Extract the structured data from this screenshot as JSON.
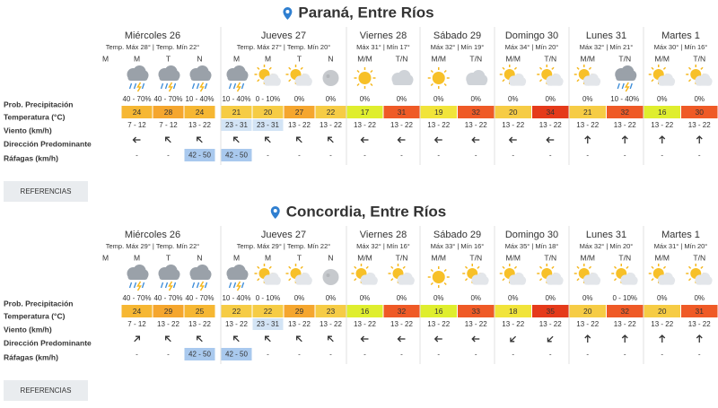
{
  "locations": [
    {
      "title": "Paraná, Entre Ríos",
      "row_labels": [
        "Prob. Precipitación",
        "Temperatura (°C)",
        "Viento (km/h)",
        "Dirección Predominante",
        "Ráfagas (km/h)"
      ],
      "days": [
        {
          "name": "Miércoles 26",
          "summary": "Temp. Máx 28° | Temp. Mín 22°",
          "periods": [
            {
              "label": "M"
            },
            {
              "label": "M",
              "prob": "40 - 70%",
              "temp": 24,
              "wind": "7 - 12",
              "gust": "-"
            },
            {
              "label": "T",
              "prob": "40 - 70%",
              "temp": 28,
              "wind": "7 - 12",
              "gust": "-"
            },
            {
              "label": "N",
              "prob": "10 - 40%",
              "temp": 24,
              "wind": "13 - 22",
              "gust": "42 - 50"
            }
          ]
        },
        {
          "name": "Jueves 27",
          "summary": "Temp. Máx 27° | Temp. Mín 20°",
          "periods": [
            {
              "label": "M",
              "prob": "10 - 40%",
              "temp": 21,
              "wind": "23 - 31",
              "gust": "42 - 50"
            },
            {
              "label": "M",
              "prob": "0 - 10%",
              "temp": 20,
              "wind": "23 - 31",
              "gust": "-"
            },
            {
              "label": "T",
              "prob": "0%",
              "temp": 27,
              "wind": "13 - 22",
              "gust": "-"
            },
            {
              "label": "N",
              "prob": "0%",
              "temp": 22,
              "wind": "13 - 22",
              "gust": "-"
            }
          ]
        },
        {
          "name": "Viernes 28",
          "summary": "Máx 31° | Mín 17°",
          "periods": [
            {
              "label": "M/M",
              "prob": "0%",
              "temp": 17,
              "wind": "13 - 22",
              "gust": "-"
            },
            {
              "label": "T/N",
              "prob": "0%",
              "temp": 31,
              "wind": "13 - 22",
              "gust": "-"
            }
          ]
        },
        {
          "name": "Sábado 29",
          "summary": "Máx 32° | Mín 19°",
          "periods": [
            {
              "label": "M/M",
              "prob": "0%",
              "temp": 19,
              "wind": "13 - 22",
              "gust": "-"
            },
            {
              "label": "T/N",
              "prob": "0%",
              "temp": 32,
              "wind": "13 - 22",
              "gust": "-"
            }
          ]
        },
        {
          "name": "Domingo 30",
          "summary": "Máx 34° | Mín 20°",
          "periods": [
            {
              "label": "M/M",
              "prob": "0%",
              "temp": 20,
              "wind": "13 - 22",
              "gust": "-"
            },
            {
              "label": "T/N",
              "prob": "0%",
              "temp": 34,
              "wind": "13 - 22",
              "gust": "-"
            }
          ]
        },
        {
          "name": "Lunes 31",
          "summary": "Máx 32° | Mín 21°",
          "periods": [
            {
              "label": "M/M",
              "prob": "0%",
              "temp": 21,
              "wind": "13 - 22",
              "gust": "-"
            },
            {
              "label": "T/N",
              "prob": "10 - 40%",
              "temp": 32,
              "wind": "13 - 22",
              "gust": "-"
            }
          ]
        },
        {
          "name": "Martes 1",
          "summary": "Máx 30° | Mín 16°",
          "periods": [
            {
              "label": "M/M",
              "prob": "0%",
              "temp": 16,
              "wind": "13 - 22",
              "gust": "-"
            },
            {
              "label": "T/N",
              "prob": "0%",
              "temp": 30,
              "wind": "13 - 22",
              "gust": "-"
            }
          ]
        }
      ],
      "button": "REFERENCIAS"
    },
    {
      "title": "Concordia, Entre Ríos",
      "row_labels": [
        "Prob. Precipitación",
        "Temperatura (°C)",
        "Viento (km/h)",
        "Dirección Predominante",
        "Ráfagas (km/h)"
      ],
      "days": [
        {
          "name": "Miércoles 26",
          "summary": "Temp. Máx 29° | Temp. Mín 22°",
          "periods": [
            {
              "label": "M"
            },
            {
              "label": "M",
              "prob": "40 - 70%",
              "temp": 24,
              "wind": "7 - 12",
              "gust": "-"
            },
            {
              "label": "T",
              "prob": "40 - 70%",
              "temp": 29,
              "wind": "13 - 22",
              "gust": "-"
            },
            {
              "label": "N",
              "prob": "40 - 70%",
              "temp": 25,
              "wind": "13 - 22",
              "gust": "42 - 50"
            }
          ]
        },
        {
          "name": "Jueves 27",
          "summary": "Temp. Máx 29° | Temp. Mín 22°",
          "periods": [
            {
              "label": "M",
              "prob": "10 - 40%",
              "temp": 22,
              "wind": "13 - 22",
              "gust": "42 - 50"
            },
            {
              "label": "M",
              "prob": "0 - 10%",
              "temp": 22,
              "wind": "23 - 31",
              "gust": "-"
            },
            {
              "label": "T",
              "prob": "0%",
              "temp": 29,
              "wind": "13 - 22",
              "gust": "-"
            },
            {
              "label": "N",
              "prob": "0%",
              "temp": 23,
              "wind": "13 - 22",
              "gust": "-"
            }
          ]
        },
        {
          "name": "Viernes 28",
          "summary": "Máx 32° | Mín 16°",
          "periods": [
            {
              "label": "M/M",
              "prob": "0%",
              "temp": 16,
              "wind": "13 - 22",
              "gust": "-"
            },
            {
              "label": "T/N",
              "prob": "0%",
              "temp": 32,
              "wind": "13 - 22",
              "gust": "-"
            }
          ]
        },
        {
          "name": "Sábado 29",
          "summary": "Máx 33° | Mín 16°",
          "periods": [
            {
              "label": "M/M",
              "prob": "0%",
              "temp": 16,
              "wind": "13 - 22",
              "gust": "-"
            },
            {
              "label": "T/N",
              "prob": "0%",
              "temp": 33,
              "wind": "13 - 22",
              "gust": "-"
            }
          ]
        },
        {
          "name": "Domingo 30",
          "summary": "Máx 35° | Mín 18°",
          "periods": [
            {
              "label": "M/M",
              "prob": "0%",
              "temp": 18,
              "wind": "13 - 22",
              "gust": "-"
            },
            {
              "label": "T/N",
              "prob": "0%",
              "temp": 35,
              "wind": "13 - 22",
              "gust": "-"
            }
          ]
        },
        {
          "name": "Lunes 31",
          "summary": "Máx 32° | Mín 20°",
          "periods": [
            {
              "label": "M/M",
              "prob": "0%",
              "temp": 20,
              "wind": "13 - 22",
              "gust": "-"
            },
            {
              "label": "T/N",
              "prob": "0 - 10%",
              "temp": 32,
              "wind": "13 - 22",
              "gust": "-"
            }
          ]
        },
        {
          "name": "Martes 1",
          "summary": "Máx 31° | Mín 20°",
          "periods": [
            {
              "label": "M/M",
              "prob": "0%",
              "temp": 20,
              "wind": "13 - 22",
              "gust": "-"
            },
            {
              "label": "T/N",
              "prob": "0%",
              "temp": 31,
              "wind": "13 - 22",
              "gust": "-"
            }
          ]
        }
      ],
      "button": "REFERENCIAS"
    }
  ]
}
